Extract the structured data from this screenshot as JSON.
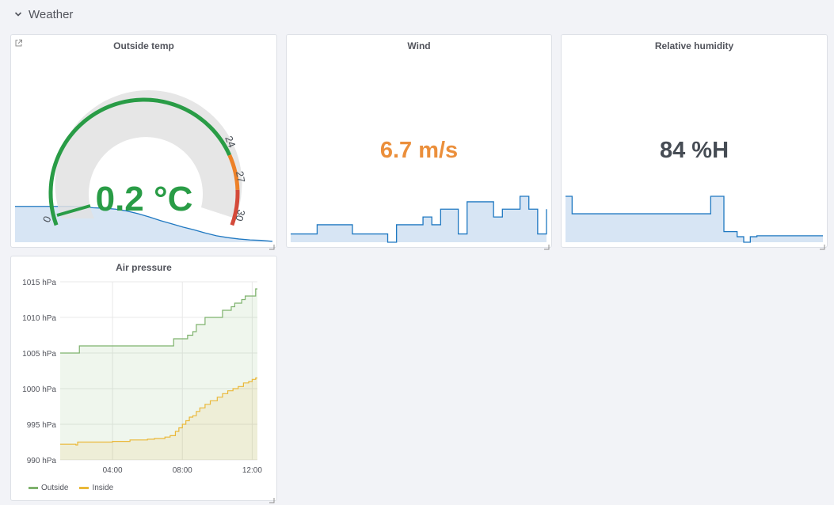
{
  "row": {
    "title": "Weather"
  },
  "panels": {
    "outside_temp": {
      "title": "Outside temp",
      "value": "0.2 °C",
      "value_color": "#299c46",
      "gauge": {
        "min": 0,
        "max": 30,
        "value": 0.2,
        "thresholds": [
          {
            "from": 0,
            "to": 24,
            "color": "#299c46"
          },
          {
            "from": 24,
            "to": 27,
            "color": "#ed8128"
          },
          {
            "from": 27,
            "to": 30,
            "color": "#d44a3a"
          }
        ],
        "labels": [
          "0",
          "24",
          "27",
          "30"
        ]
      }
    },
    "wind": {
      "title": "Wind",
      "value": "6.7 m/s",
      "value_color": "#eb8f3b"
    },
    "humidity": {
      "title": "Relative humidity",
      "value": "84 %H",
      "value_color": "#464c54"
    },
    "air_pressure": {
      "title": "Air pressure",
      "legend": [
        {
          "name": "Outside",
          "color": "#7eb26d"
        },
        {
          "name": "Inside",
          "color": "#eab839"
        }
      ]
    }
  },
  "chart_data": {
    "type": "line",
    "title": "Air pressure",
    "ylim": [
      990,
      1015
    ],
    "y_ticks": [
      "990 hPa",
      "995 hPa",
      "1000 hPa",
      "1005 hPa",
      "1010 hPa",
      "1015 hPa"
    ],
    "x_ticks": [
      "04:00",
      "08:00",
      "12:00"
    ],
    "grid": true,
    "legend_position": "bottom-left",
    "series": [
      {
        "name": "Outside",
        "color": "#7eb26d",
        "x": [
          1.0,
          2.0,
          2.1,
          3.0,
          4.0,
          5.0,
          6.0,
          6.4,
          7.4,
          7.5,
          7.8,
          8.3,
          8.6,
          8.8,
          9.0,
          9.3,
          9.6,
          10.0,
          10.3,
          10.6,
          10.8,
          11.0,
          11.2,
          11.4,
          11.6,
          11.8,
          12.0,
          12.2,
          12.3
        ],
        "y": [
          1005,
          1005,
          1006,
          1006,
          1006,
          1006,
          1006,
          1006,
          1006,
          1007,
          1007,
          1007.5,
          1008,
          1009,
          1009,
          1010,
          1010,
          1010,
          1011,
          1011,
          1011.5,
          1012,
          1012,
          1012.5,
          1013,
          1013,
          1013,
          1014,
          1014
        ]
      },
      {
        "name": "Inside",
        "color": "#eab839",
        "x": [
          1.0,
          1.9,
          2.0,
          2.4,
          3.0,
          4.0,
          5.0,
          6.0,
          6.4,
          6.6,
          7.0,
          7.3,
          7.6,
          7.8,
          8.0,
          8.2,
          8.4,
          8.6,
          8.8,
          9.0,
          9.3,
          9.6,
          10.0,
          10.3,
          10.6,
          10.9,
          11.2,
          11.5,
          11.8,
          12.0,
          12.2,
          12.3
        ],
        "y": [
          992.2,
          992.1,
          992.5,
          992.5,
          992.5,
          992.6,
          992.8,
          992.9,
          993,
          993,
          993.2,
          993.4,
          994,
          994.5,
          995,
          995.5,
          996,
          996.2,
          996.8,
          997.3,
          997.8,
          998.3,
          998.8,
          999.3,
          999.7,
          1000,
          1000.3,
          1000.8,
          1001,
          1001.3,
          1001.5,
          1001.5
        ]
      }
    ]
  },
  "sparklines": {
    "outside_temp": [
      0.78,
      0.78,
      0.78,
      0.78,
      0.78,
      0.78,
      0.77,
      0.75,
      0.74,
      0.72,
      0.68,
      0.62,
      0.55,
      0.47,
      0.4,
      0.33,
      0.27,
      0.2,
      0.14,
      0.1,
      0.07,
      0.05,
      0.04,
      0.02
    ],
    "wind": [
      0.18,
      0.18,
      0.18,
      0.38,
      0.38,
      0.38,
      0.38,
      0.18,
      0.18,
      0.18,
      0.18,
      0.0,
      0.38,
      0.38,
      0.38,
      0.55,
      0.38,
      0.72,
      0.72,
      0.18,
      0.88,
      0.88,
      0.88,
      0.55,
      0.72,
      0.72,
      1.0,
      0.72,
      0.18,
      0.72
    ],
    "humidity": [
      1.0,
      0.62,
      0.62,
      0.62,
      0.62,
      0.62,
      0.62,
      0.62,
      0.62,
      0.62,
      0.62,
      0.62,
      0.62,
      0.62,
      0.62,
      0.62,
      0.62,
      0.62,
      0.62,
      0.62,
      0.62,
      0.62,
      1.0,
      1.0,
      0.23,
      0.23,
      0.12,
      0.0,
      0.12,
      0.14,
      0.14,
      0.14,
      0.14,
      0.14,
      0.14,
      0.14,
      0.14,
      0.14,
      0.14,
      0.14
    ]
  }
}
